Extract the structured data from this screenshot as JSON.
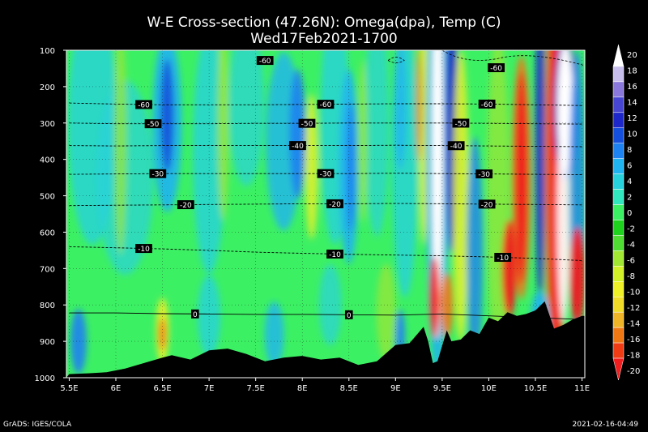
{
  "title": "W-E Cross-section (47.26N): Omega(dpa), Temp (C)",
  "subtitle": "Wed17Feb2021-1700",
  "footer_left": "GrADS: IGES/COLA",
  "footer_right": "2021-02-16-04:49",
  "chart_data": {
    "type": "heatmap",
    "title": "W-E Cross-section (47.26N): Omega(dpa), Temp (C)",
    "subtitle": "Wed17Feb2021-1700",
    "x_tick_labels": [
      "5.5E",
      "6E",
      "6.5E",
      "7E",
      "7.5E",
      "8E",
      "8.5E",
      "9E",
      "9.5E",
      "10E",
      "10.5E",
      "11E"
    ],
    "x_ticks": [
      5.5,
      6,
      6.5,
      7,
      7.5,
      8,
      8.5,
      9,
      9.5,
      10,
      10.5,
      11
    ],
    "xlim": [
      5.47,
      11.03
    ],
    "y_tick_labels": [
      "100",
      "200",
      "300",
      "400",
      "500",
      "600",
      "700",
      "800",
      "900",
      "1000"
    ],
    "y_ticks": [
      100,
      200,
      300,
      400,
      500,
      600,
      700,
      800,
      900,
      1000
    ],
    "ylim": [
      1000,
      100
    ],
    "grid": true,
    "colorbar": {
      "labels": [
        "20",
        "18",
        "16",
        "14",
        "12",
        "10",
        "8",
        "6",
        "4",
        "2",
        "0",
        "-2",
        "-4",
        "-6",
        "-8",
        "-10",
        "-12",
        "-14",
        "-16",
        "-18",
        "-20"
      ],
      "colors": [
        "#ffffff",
        "#c8beeb",
        "#8a78da",
        "#4646d2",
        "#1e28c8",
        "#1450dc",
        "#1e82f0",
        "#20b4f0",
        "#28d2dc",
        "#32e6be",
        "#3cf064",
        "#1ed21e",
        "#50dc32",
        "#a0e632",
        "#d2f028",
        "#f0f028",
        "#f0dc28",
        "#f0b428",
        "#f07814",
        "#f03c14",
        "#f01e1e"
      ]
    },
    "temperature_contours": [
      {
        "level": -60,
        "p": [
          245,
          248,
          250,
          250,
          250,
          249,
          248,
          247,
          247,
          248,
          250,
          252
        ],
        "labels": [
          {
            "x": 6.3,
            "text": "-60"
          },
          {
            "x": 8.25,
            "text": "-60"
          },
          {
            "x": 9.98,
            "text": "-60"
          }
        ]
      },
      {
        "level": -50,
        "p": [
          300,
          302,
          302,
          302,
          301,
          301,
          300,
          300,
          300,
          301,
          302,
          303
        ],
        "labels": [
          {
            "x": 6.4,
            "text": "-50"
          },
          {
            "x": 8.05,
            "text": "-50"
          },
          {
            "x": 9.7,
            "text": "-50"
          }
        ]
      },
      {
        "level": -40,
        "p": [
          362,
          363,
          362,
          362,
          362,
          362,
          362,
          361,
          362,
          363,
          364,
          365
        ],
        "labels": [
          {
            "x": 7.95,
            "text": "-40"
          },
          {
            "x": 9.65,
            "text": "-40"
          }
        ]
      },
      {
        "level": -30,
        "p": [
          441,
          440,
          439,
          439,
          439,
          439,
          439,
          438,
          439,
          440,
          441,
          442
        ],
        "labels": [
          {
            "x": 6.45,
            "text": "-30"
          },
          {
            "x": 8.25,
            "text": "-30"
          },
          {
            "x": 9.95,
            "text": "-30"
          }
        ]
      },
      {
        "level": -20,
        "p": [
          527,
          526,
          525,
          524,
          523,
          522,
          522,
          521,
          522,
          523,
          524,
          525
        ],
        "labels": [
          {
            "x": 6.75,
            "text": "-20"
          },
          {
            "x": 8.35,
            "text": "-20"
          },
          {
            "x": 9.98,
            "text": "-20"
          }
        ]
      },
      {
        "level": -10,
        "p": [
          640,
          643,
          646,
          650,
          655,
          658,
          661,
          663,
          665,
          668,
          672,
          678
        ],
        "labels": [
          {
            "x": 6.3,
            "text": "-10"
          },
          {
            "x": 8.35,
            "text": "-10"
          },
          {
            "x": 10.15,
            "text": "-10"
          }
        ]
      },
      {
        "level": 0,
        "p": [
          822,
          822,
          824,
          825,
          826,
          826,
          827,
          828,
          825,
          830,
          835,
          840
        ],
        "labels": [
          {
            "x": 6.85,
            "text": "0"
          },
          {
            "x": 8.5,
            "text": "0"
          }
        ]
      }
    ],
    "extra_contour_labels": [
      {
        "x": 7.6,
        "p": 128,
        "text": "-60"
      },
      {
        "x": 10.08,
        "p": 148,
        "text": "-60"
      }
    ],
    "terrain_surface_pressure": {
      "x": [
        5.5,
        5.7,
        5.9,
        6.1,
        6.3,
        6.5,
        6.6,
        6.8,
        7.0,
        7.2,
        7.4,
        7.6,
        7.8,
        8.0,
        8.2,
        8.4,
        8.6,
        8.8,
        9.0,
        9.15,
        9.3,
        9.35,
        9.4,
        9.45,
        9.55,
        9.6,
        9.7,
        9.8,
        9.9,
        10.0,
        10.1,
        10.2,
        10.3,
        10.4,
        10.5,
        10.6,
        10.7,
        10.8,
        10.9,
        11.0
      ],
      "p": [
        990,
        988,
        985,
        975,
        960,
        945,
        938,
        950,
        925,
        920,
        935,
        955,
        945,
        940,
        950,
        945,
        965,
        955,
        910,
        905,
        860,
        900,
        960,
        955,
        870,
        900,
        895,
        870,
        880,
        835,
        845,
        820,
        830,
        825,
        815,
        790,
        865,
        855,
        840,
        830
      ]
    }
  }
}
